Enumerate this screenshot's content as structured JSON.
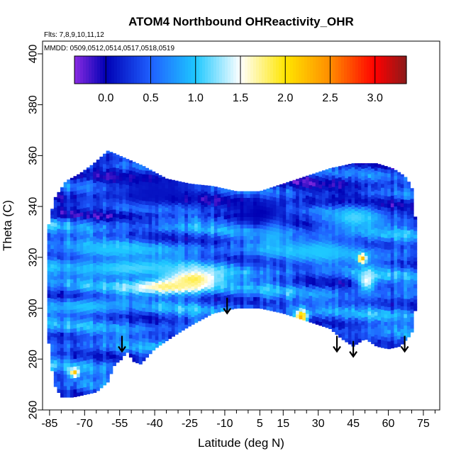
{
  "chart_data": {
    "type": "heatmap",
    "title": "ATOM4 Northbound OHReactivity_OHR",
    "notes": {
      "flights": "Flts: 7,8,9,10,11,12",
      "dates": "MMDD: 0509,0512,0514,0517,0518,0519"
    },
    "xlabel": "Latitude (deg N)",
    "ylabel": "Theta (C)",
    "xlim": [
      -88,
      82
    ],
    "ylim": [
      260,
      405
    ],
    "x_ticks": [
      -85,
      -70,
      -55,
      -40,
      -25,
      -10,
      5,
      15,
      30,
      45,
      60,
      75
    ],
    "x_tick_labels": [
      "-85",
      "-70",
      "-55",
      "-40",
      "-25",
      "-10",
      "5",
      "15",
      "30",
      "45",
      "60",
      "75"
    ],
    "x_minor_ticks": [
      -80,
      -75,
      -65,
      -60,
      -50,
      -45,
      -35,
      -30,
      -20,
      -15,
      -5,
      0,
      10,
      20,
      25,
      35,
      40,
      50,
      55,
      65,
      70,
      80
    ],
    "y_ticks": [
      260,
      280,
      300,
      320,
      340,
      360,
      380,
      400
    ],
    "y_tick_labels": [
      "260",
      "280",
      "300",
      "320",
      "340",
      "360",
      "380",
      "400"
    ],
    "colorbar": {
      "range": [
        -0.35,
        3.35
      ],
      "ticks": [
        0.0,
        0.5,
        1.0,
        1.5,
        2.0,
        2.5,
        3.0
      ],
      "tick_labels": [
        "0.0",
        "0.5",
        "1.0",
        "1.5",
        "2.0",
        "2.5",
        "3.0"
      ],
      "boundaries": [
        0.0,
        0.5,
        1.0,
        1.5,
        2.0,
        2.5,
        3.0
      ],
      "colors": [
        "#8a2be2",
        "#0000b4",
        "#1f5fff",
        "#1ec8ff",
        "#ffffff",
        "#ffe600",
        "#ff8c00",
        "#ff0000",
        "#8b1a1a"
      ],
      "color_stops": [
        -0.35,
        0.0,
        0.5,
        1.0,
        1.5,
        2.0,
        2.5,
        3.0,
        3.35
      ]
    },
    "data_region": {
      "top_boundary": [
        [
          -86,
          330
        ],
        [
          -83,
          343
        ],
        [
          -78,
          350
        ],
        [
          -72,
          353
        ],
        [
          -66,
          357
        ],
        [
          -60,
          362
        ],
        [
          -55,
          360
        ],
        [
          -45,
          356
        ],
        [
          -35,
          351
        ],
        [
          -25,
          349
        ],
        [
          -15,
          348
        ],
        [
          -5,
          346
        ],
        [
          5,
          346
        ],
        [
          15,
          349
        ],
        [
          25,
          352
        ],
        [
          35,
          355
        ],
        [
          45,
          357
        ],
        [
          55,
          357
        ],
        [
          62,
          355
        ],
        [
          67,
          352
        ],
        [
          70,
          348
        ],
        [
          72,
          332
        ]
      ],
      "bottom_boundary": [
        [
          72,
          302
        ],
        [
          70,
          290
        ],
        [
          65,
          285
        ],
        [
          60,
          284
        ],
        [
          55,
          285
        ],
        [
          50,
          288
        ],
        [
          45,
          285
        ],
        [
          40,
          288
        ],
        [
          35,
          292
        ],
        [
          25,
          295
        ],
        [
          15,
          298
        ],
        [
          5,
          300
        ],
        [
          -5,
          300
        ],
        [
          -15,
          298
        ],
        [
          -25,
          293
        ],
        [
          -32,
          289
        ],
        [
          -40,
          284
        ],
        [
          -46,
          278
        ],
        [
          -49,
          279
        ],
        [
          -52,
          283
        ],
        [
          -54,
          280
        ],
        [
          -57,
          278
        ],
        [
          -58,
          276
        ],
        [
          -60,
          271
        ],
        [
          -65,
          267
        ],
        [
          -70,
          266
        ],
        [
          -75,
          265
        ],
        [
          -80,
          265
        ],
        [
          -83,
          270
        ],
        [
          -85,
          282
        ],
        [
          -86,
          296
        ]
      ],
      "mean_value": 0.55
    },
    "features": [
      {
        "lat": -25,
        "theta": 311,
        "value": 2.1,
        "lat_radius": 12,
        "theta_radius": 4
      },
      {
        "lat": -35,
        "theta": 308,
        "value": 1.8,
        "lat_radius": 18,
        "theta_radius": 3
      },
      {
        "lat": -50,
        "theta": 315,
        "value": 1.1,
        "lat_radius": 30,
        "theta_radius": 4
      },
      {
        "lat": -60,
        "theta": 322,
        "value": 1.0,
        "lat_radius": 20,
        "theta_radius": 3
      },
      {
        "lat": -70,
        "theta": 300,
        "value": 1.0,
        "lat_radius": 15,
        "theta_radius": 3
      },
      {
        "lat": 22,
        "theta": 296,
        "value": 2.3,
        "lat_radius": 3,
        "theta_radius": 3
      },
      {
        "lat": 48,
        "theta": 319,
        "value": 2.8,
        "lat_radius": 2,
        "theta_radius": 2
      },
      {
        "lat": 50,
        "theta": 310,
        "value": 1.5,
        "lat_radius": 4,
        "theta_radius": 4
      },
      {
        "lat": 30,
        "theta": 322,
        "value": 1.0,
        "lat_radius": 20,
        "theta_radius": 5
      },
      {
        "lat": 10,
        "theta": 330,
        "value": 1.0,
        "lat_radius": 5,
        "theta_radius": 8
      },
      {
        "lat": 45,
        "theta": 335,
        "value": 1.1,
        "lat_radius": 10,
        "theta_radius": 5
      },
      {
        "lat": -40,
        "theta": 345,
        "value": 0.1,
        "lat_radius": 20,
        "theta_radius": 6
      },
      {
        "lat": -75,
        "theta": 274,
        "value": 2.2,
        "lat_radius": 2,
        "theta_radius": 2
      },
      {
        "lat": 5,
        "theta": 337,
        "value": 0.0,
        "lat_radius": 12,
        "theta_radius": 6
      }
    ],
    "arrows": [
      {
        "lat": -54,
        "theta": 283
      },
      {
        "lat": -9,
        "theta": 298
      },
      {
        "lat": 38,
        "theta": 283
      },
      {
        "lat": 45,
        "theta": 281
      },
      {
        "lat": 67,
        "theta": 283
      }
    ]
  }
}
